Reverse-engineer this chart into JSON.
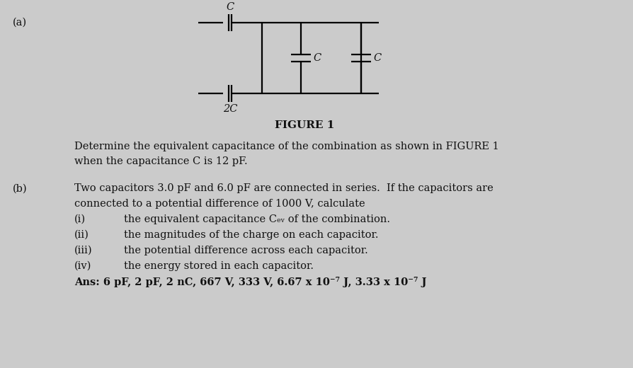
{
  "bg_color": "#cbcbcb",
  "title_label": "FIGURE 1",
  "part_a_label": "(a)",
  "part_b_label": "(b)",
  "circuit": {
    "cap_C_top_label": "C",
    "cap_C_left_label": "C",
    "cap_C_right_label": "C",
    "cap_2C_label": "2C"
  },
  "text_line1": "Determine the equivalent capacitance of the combination as shown in FIGURE 1",
  "text_line2": "when the capacitance C is 12 pF.",
  "part_b_intro": "Two capacitors 3.0 pF and 6.0 pF are connected in series.  If the capacitors are",
  "part_b_intro2": "connected to a potential difference of 1000 V, calculate",
  "sub_items": [
    [
      "(i)",
      "the equivalent capacitance Cₑᵥ of the combination."
    ],
    [
      "(ii)",
      "the magnitudes of the charge on each capacitor."
    ],
    [
      "(iii)",
      "the potential difference across each capacitor."
    ],
    [
      "(iv)",
      "the energy stored in each capacitor."
    ]
  ],
  "ans_line": "Ans: 6 pF, 2 pF, 2 nC, 667 V, 333 V, 6.67 x 10⁻⁷ J, 3.33 x 10⁻⁷ J",
  "font_size": 10.5,
  "text_color": "#111111",
  "line_color": "#000000",
  "lw": 1.6
}
